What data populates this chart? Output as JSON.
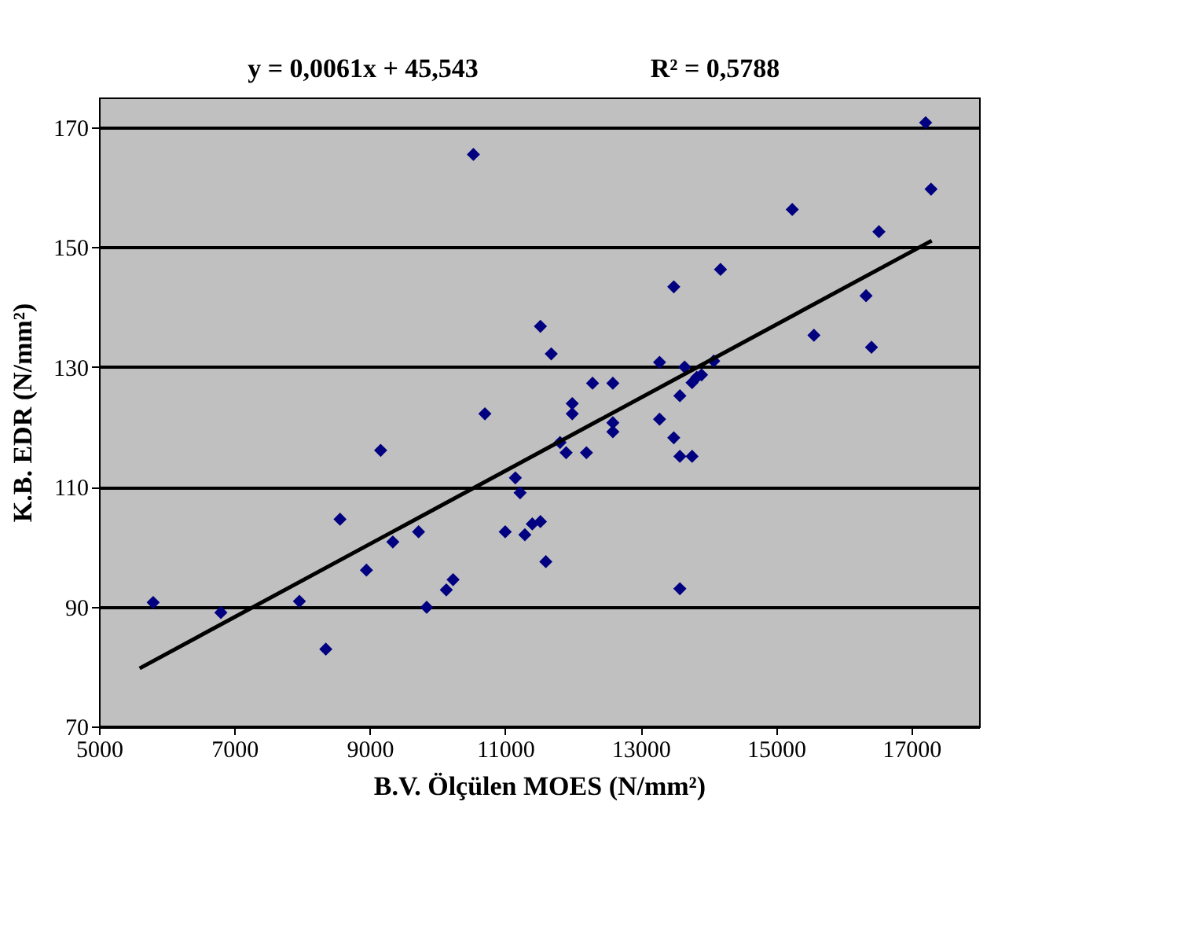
{
  "chart_data": {
    "type": "scatter",
    "annotations": [
      "y = 0,0061x + 45,543",
      "R² = 0,5788"
    ],
    "xlabel": "B.V. Ölçülen MOES (N/mm²)",
    "ylabel": "K.B. EDR (N/mm²)",
    "xlim": [
      5000,
      18000
    ],
    "xticks": [
      5000,
      7000,
      9000,
      11000,
      13000,
      15000,
      17000
    ],
    "ylim": [
      70,
      175
    ],
    "yticks": [
      70,
      90,
      110,
      130,
      150,
      170
    ],
    "grid": "y",
    "series": [
      {
        "marker": "diamond",
        "color": "#000080",
        "x": [
          5800,
          6800,
          7960,
          8350,
          8560,
          8950,
          9160,
          9340,
          9720,
          9840,
          10130,
          10230,
          10530,
          10700,
          11000,
          11150,
          11220,
          11290,
          11400,
          11520,
          11600,
          11520,
          11680,
          11810,
          11900,
          11990,
          11990,
          12200,
          12290,
          12590,
          12590,
          12590,
          13280,
          13280,
          13490,
          13490,
          13580,
          13760,
          13580,
          13580,
          13650,
          13760,
          13830,
          13900,
          14080,
          14180,
          15240,
          15560,
          16330,
          16410,
          16520,
          17210,
          17290
        ],
        "values": [
          90.7,
          89.0,
          90.9,
          82.9,
          104.6,
          96.1,
          116.1,
          100.8,
          102.5,
          89.9,
          92.8,
          94.5,
          165.5,
          122.2,
          102.5,
          111.5,
          109.0,
          102.0,
          103.8,
          104.2,
          97.5,
          136.8,
          132.2,
          117.4,
          115.7,
          123.9,
          122.2,
          115.7,
          127.3,
          127.3,
          120.7,
          119.2,
          130.8,
          121.3,
          143.4,
          118.2,
          115.1,
          115.1,
          125.2,
          93.0,
          130.0,
          127.4,
          128.3,
          128.7,
          131.0,
          146.3,
          156.3,
          135.3,
          141.9,
          133.3,
          152.6,
          170.8,
          159.7
        ]
      },
      {
        "type": "line",
        "color": "#000000",
        "line_style": "solid",
        "x": [
          5600,
          17300
        ],
        "values": [
          79.7,
          151.1
        ]
      }
    ]
  }
}
